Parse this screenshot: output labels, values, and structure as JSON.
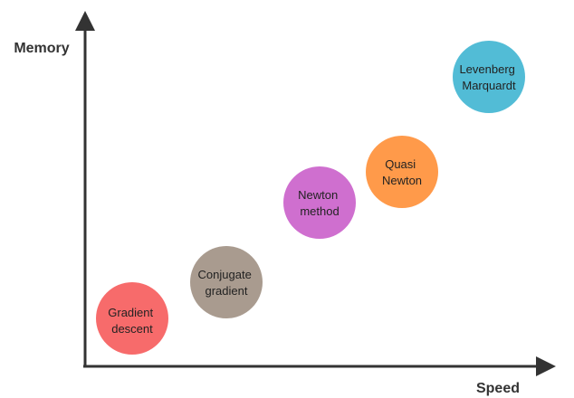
{
  "axes": {
    "y_label": "Memory",
    "x_label": "Speed"
  },
  "nodes": [
    {
      "label": [
        "Gradient",
        "descent"
      ]
    },
    {
      "label": [
        "Conjugate",
        "gradient"
      ]
    },
    {
      "label": [
        "Newton",
        "method"
      ]
    },
    {
      "label": [
        "Quasi",
        "Newton"
      ]
    },
    {
      "label": [
        "Levenberg",
        "Marquardt"
      ]
    }
  ]
}
